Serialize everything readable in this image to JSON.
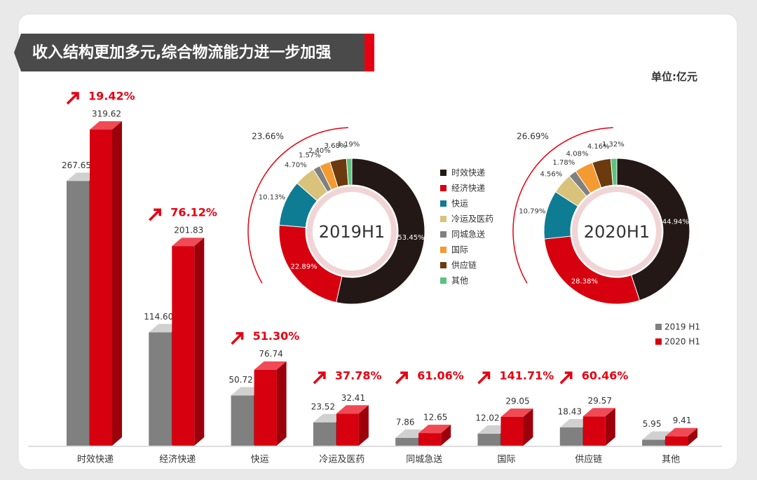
{
  "chart_data": [
    {
      "type": "bar3d",
      "title": "收入结构更加多元,综合物流能力进一步加强",
      "unit": "单位:亿元",
      "categories": [
        "时效快递",
        "经济快递",
        "快运",
        "冷运及医药",
        "同城急送",
        "国际",
        "供应链",
        "其他"
      ],
      "series": [
        {
          "name": "2019 H1",
          "color": "#808080",
          "values": [
            267.65,
            114.6,
            50.72,
            23.52,
            7.86,
            12.02,
            18.43,
            5.95
          ],
          "value_labels": [
            "267.65",
            "114.60",
            "50.72",
            "23.52",
            "7.86",
            "12.02",
            "18.43",
            "5.95"
          ]
        },
        {
          "name": "2020 H1",
          "color": "#d7000f",
          "values": [
            319.62,
            201.83,
            76.74,
            32.41,
            12.65,
            29.05,
            29.57,
            9.41
          ]
        }
      ],
      "growth_labels": [
        "19.42%",
        "76.12%",
        "51.30%",
        "37.78%",
        "61.06%",
        "141.71%",
        "60.46%",
        null
      ]
    },
    {
      "type": "donut",
      "categories": [
        "时效快递",
        "经济快递",
        "快运",
        "冷运及医药",
        "同城急送",
        "国际",
        "供应链",
        "其他"
      ],
      "colors": [
        "#231815",
        "#d7000f",
        "#0e7c93",
        "#d9c27a",
        "#808080",
        "#f39a32",
        "#6b3a0e",
        "#5cc27f"
      ],
      "series": [
        {
          "name": "2019H1",
          "values": [
            53.45,
            22.89,
            10.13,
            4.7,
            1.57,
            2.4,
            3.68,
            1.19
          ],
          "value_labels": [
            "53.45%",
            "22.89%",
            "10.13%",
            "4.70%",
            "1.57%",
            "2.40%",
            "3.68%",
            "1.19%"
          ],
          "arc_label": "23.66%"
        },
        {
          "name": "2020H1",
          "values": [
            44.94,
            28.38,
            10.79,
            4.56,
            1.78,
            4.08,
            4.16,
            1.32
          ],
          "value_labels": [
            "44.94%",
            "28.38%",
            "10.79%",
            "4.56%",
            "1.78%",
            "4.08%",
            "4.16%",
            "1.32%"
          ],
          "arc_label": "26.69%"
        }
      ]
    }
  ]
}
